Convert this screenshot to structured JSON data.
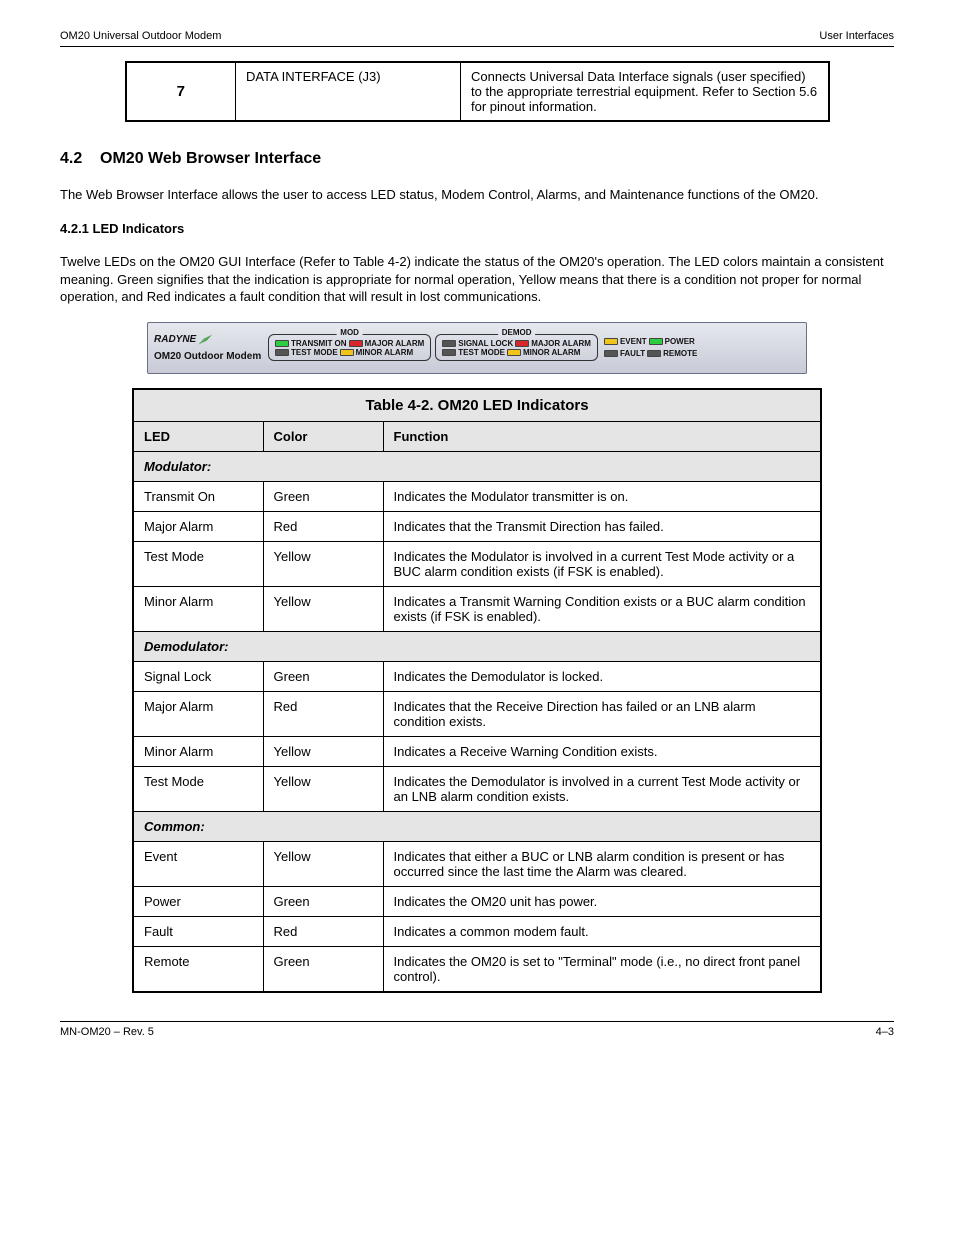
{
  "header": {
    "left": "OM20 Universal Outdoor Modem",
    "right": "User Interfaces"
  },
  "footer": {
    "left": "MN-OM20 – Rev. 5",
    "right": "4–3"
  },
  "tbl1": {
    "c1": "7",
    "c2": "DATA INTERFACE (J3)",
    "c3": "Connects Universal Data Interface signals (user specified) to the appropriate terrestrial equipment. Refer to Section 5.6 for pinout information."
  },
  "section_num": "4.2",
  "section_title": "OM20 Web Browser Interface",
  "intro": "The Web Browser Interface allows the user to access LED status, Modem Control, Alarms, and Maintenance functions of the OM20.",
  "sub_title": "4.2.1  LED Indicators",
  "sub_body": "Twelve LEDs on the OM20 GUI Interface (Refer to Table 4-2) indicate the status of the OM20's operation. The LED colors maintain a consistent meaning. Green signifies that the indication is appropriate for normal operation, Yellow means that there is a condition not proper for normal operation, and Red indicates a fault condition that will result in lost communications.",
  "panel": {
    "logo_name": "RADYNE",
    "logo_sub": "OM20 Outdoor Modem",
    "groups": [
      {
        "title": "MOD",
        "rows": [
          [
            {
              "color": "green",
              "label": "TRANSMIT ON"
            },
            {
              "color": "red",
              "label": "MAJOR ALARM"
            }
          ],
          [
            {
              "color": "off",
              "label": "TEST MODE"
            },
            {
              "color": "yellow",
              "label": "MINOR ALARM"
            }
          ]
        ]
      },
      {
        "title": "DEMOD",
        "rows": [
          [
            {
              "color": "off",
              "label": "SIGNAL LOCK"
            },
            {
              "color": "red",
              "label": "MAJOR ALARM"
            }
          ],
          [
            {
              "color": "off",
              "label": "TEST MODE"
            },
            {
              "color": "yellow",
              "label": "MINOR ALARM"
            }
          ]
        ]
      }
    ],
    "extras": [
      [
        {
          "color": "yellow",
          "label": "EVENT"
        },
        {
          "color": "green",
          "label": "POWER"
        }
      ],
      [
        {
          "color": "off",
          "label": "FAULT"
        },
        {
          "color": "off",
          "label": "REMOTE"
        }
      ]
    ]
  },
  "tbl2": {
    "title": "Table 4-2. OM20 LED Indicators",
    "head": [
      "LED",
      "Color",
      "Function"
    ],
    "sections": [
      {
        "name": "Modulator:",
        "rows": [
          [
            "Transmit On",
            "Green",
            "Indicates the Modulator transmitter is on."
          ],
          [
            "Major Alarm",
            "Red",
            "Indicates that the Transmit Direction has failed."
          ],
          [
            "Test Mode",
            "Yellow",
            "Indicates the Modulator is involved in a current Test Mode activity or a BUC alarm condition exists (if FSK is enabled)."
          ],
          [
            "Minor Alarm",
            "Yellow",
            "Indicates a Transmit Warning Condition exists or a BUC alarm condition exists (if FSK is enabled)."
          ]
        ]
      },
      {
        "name": "Demodulator:",
        "rows": [
          [
            "Signal Lock",
            "Green",
            "Indicates the Demodulator is locked."
          ],
          [
            "Major Alarm",
            "Red",
            "Indicates that the Receive Direction has failed or an LNB alarm condition exists."
          ],
          [
            "Minor Alarm",
            "Yellow",
            "Indicates a Receive Warning Condition exists."
          ],
          [
            "Test Mode",
            "Yellow",
            "Indicates the Demodulator is involved in a current Test Mode activity or an LNB alarm condition exists."
          ]
        ]
      },
      {
        "name": "Common:",
        "rows": [
          [
            "Event",
            "Yellow",
            "Indicates that either a BUC or LNB alarm condition is present or has occurred since the last time the Alarm was cleared."
          ],
          [
            "Power",
            "Green",
            "Indicates the OM20 unit has power."
          ],
          [
            "Fault",
            "Red",
            "Indicates a common modem fault."
          ],
          [
            "Remote",
            "Green",
            "Indicates the OM20 is set to \"Terminal\" mode (i.e., no direct front panel control)."
          ]
        ]
      }
    ]
  }
}
